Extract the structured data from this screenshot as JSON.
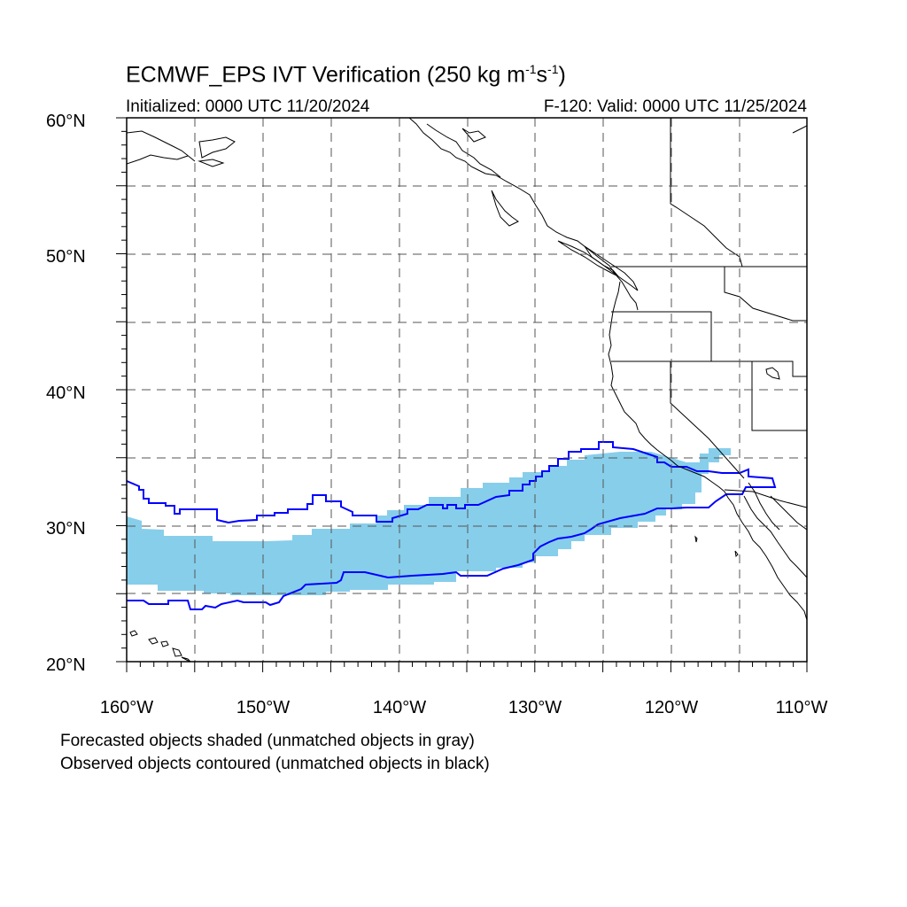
{
  "title": {
    "main": "ECMWF_EPS IVT Verification (250 kg m",
    "sup1": "-1",
    "mid": "s",
    "sup2": "-1",
    "end": ")"
  },
  "subtitle_left": "Initialized: 0000 UTC 11/20/2024",
  "subtitle_right": "F-120: Valid: 0000 UTC 11/25/2024",
  "footnotes": [
    "Forecasted objects shaded (unmatched objects in gray)",
    "Observed objects contoured (unmatched objects in black)"
  ],
  "map": {
    "lon_range": [
      -160,
      -110
    ],
    "lat_range": [
      20,
      60
    ],
    "lat_labels": [
      "20°N",
      "30°N",
      "40°N",
      "50°N",
      "60°N"
    ],
    "lon_labels": [
      "160°W",
      "150°W",
      "140°W",
      "130°W",
      "120°W",
      "110°W"
    ],
    "colors": {
      "forecast_fill": "#87CEEB",
      "observed_contour": "#0000FF",
      "coastline": "#000000",
      "grid": "#555555"
    }
  }
}
